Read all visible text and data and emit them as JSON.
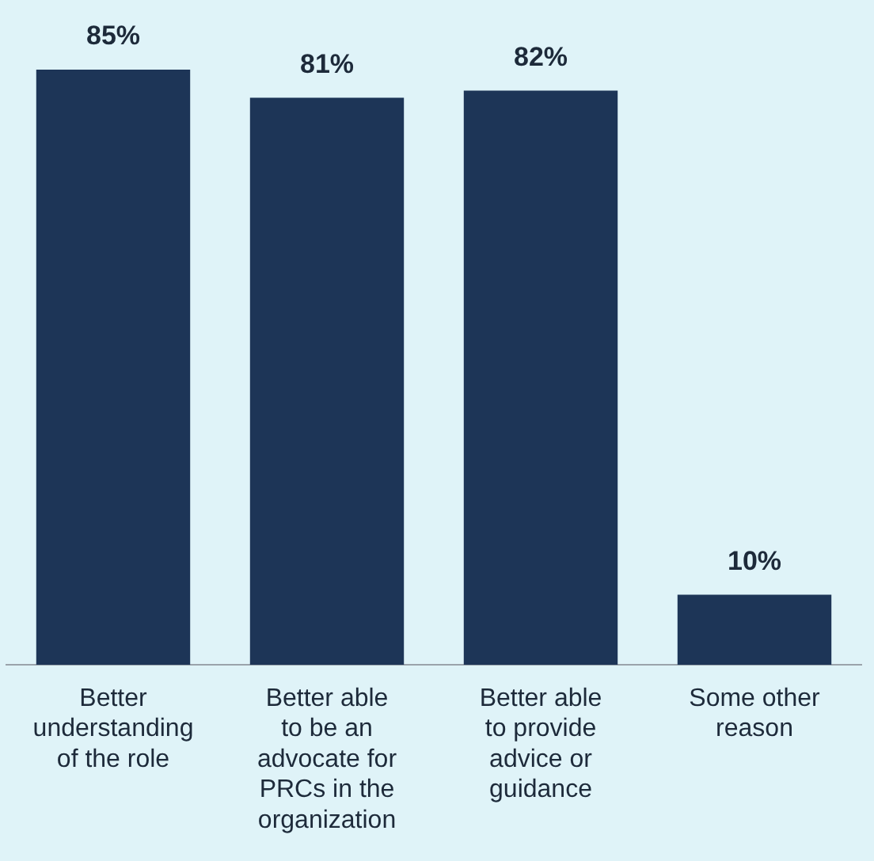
{
  "chart_data": {
    "type": "bar",
    "categories": [
      "Better understanding of the role",
      "Better able to be an advocate for PRCs in the organization",
      "Better able to provide advice or guidance",
      "Some other reason"
    ],
    "values": [
      85,
      81,
      82,
      10
    ],
    "value_labels": [
      "85%",
      "81%",
      "82%",
      "10%"
    ],
    "color": "#1d3557"
  }
}
